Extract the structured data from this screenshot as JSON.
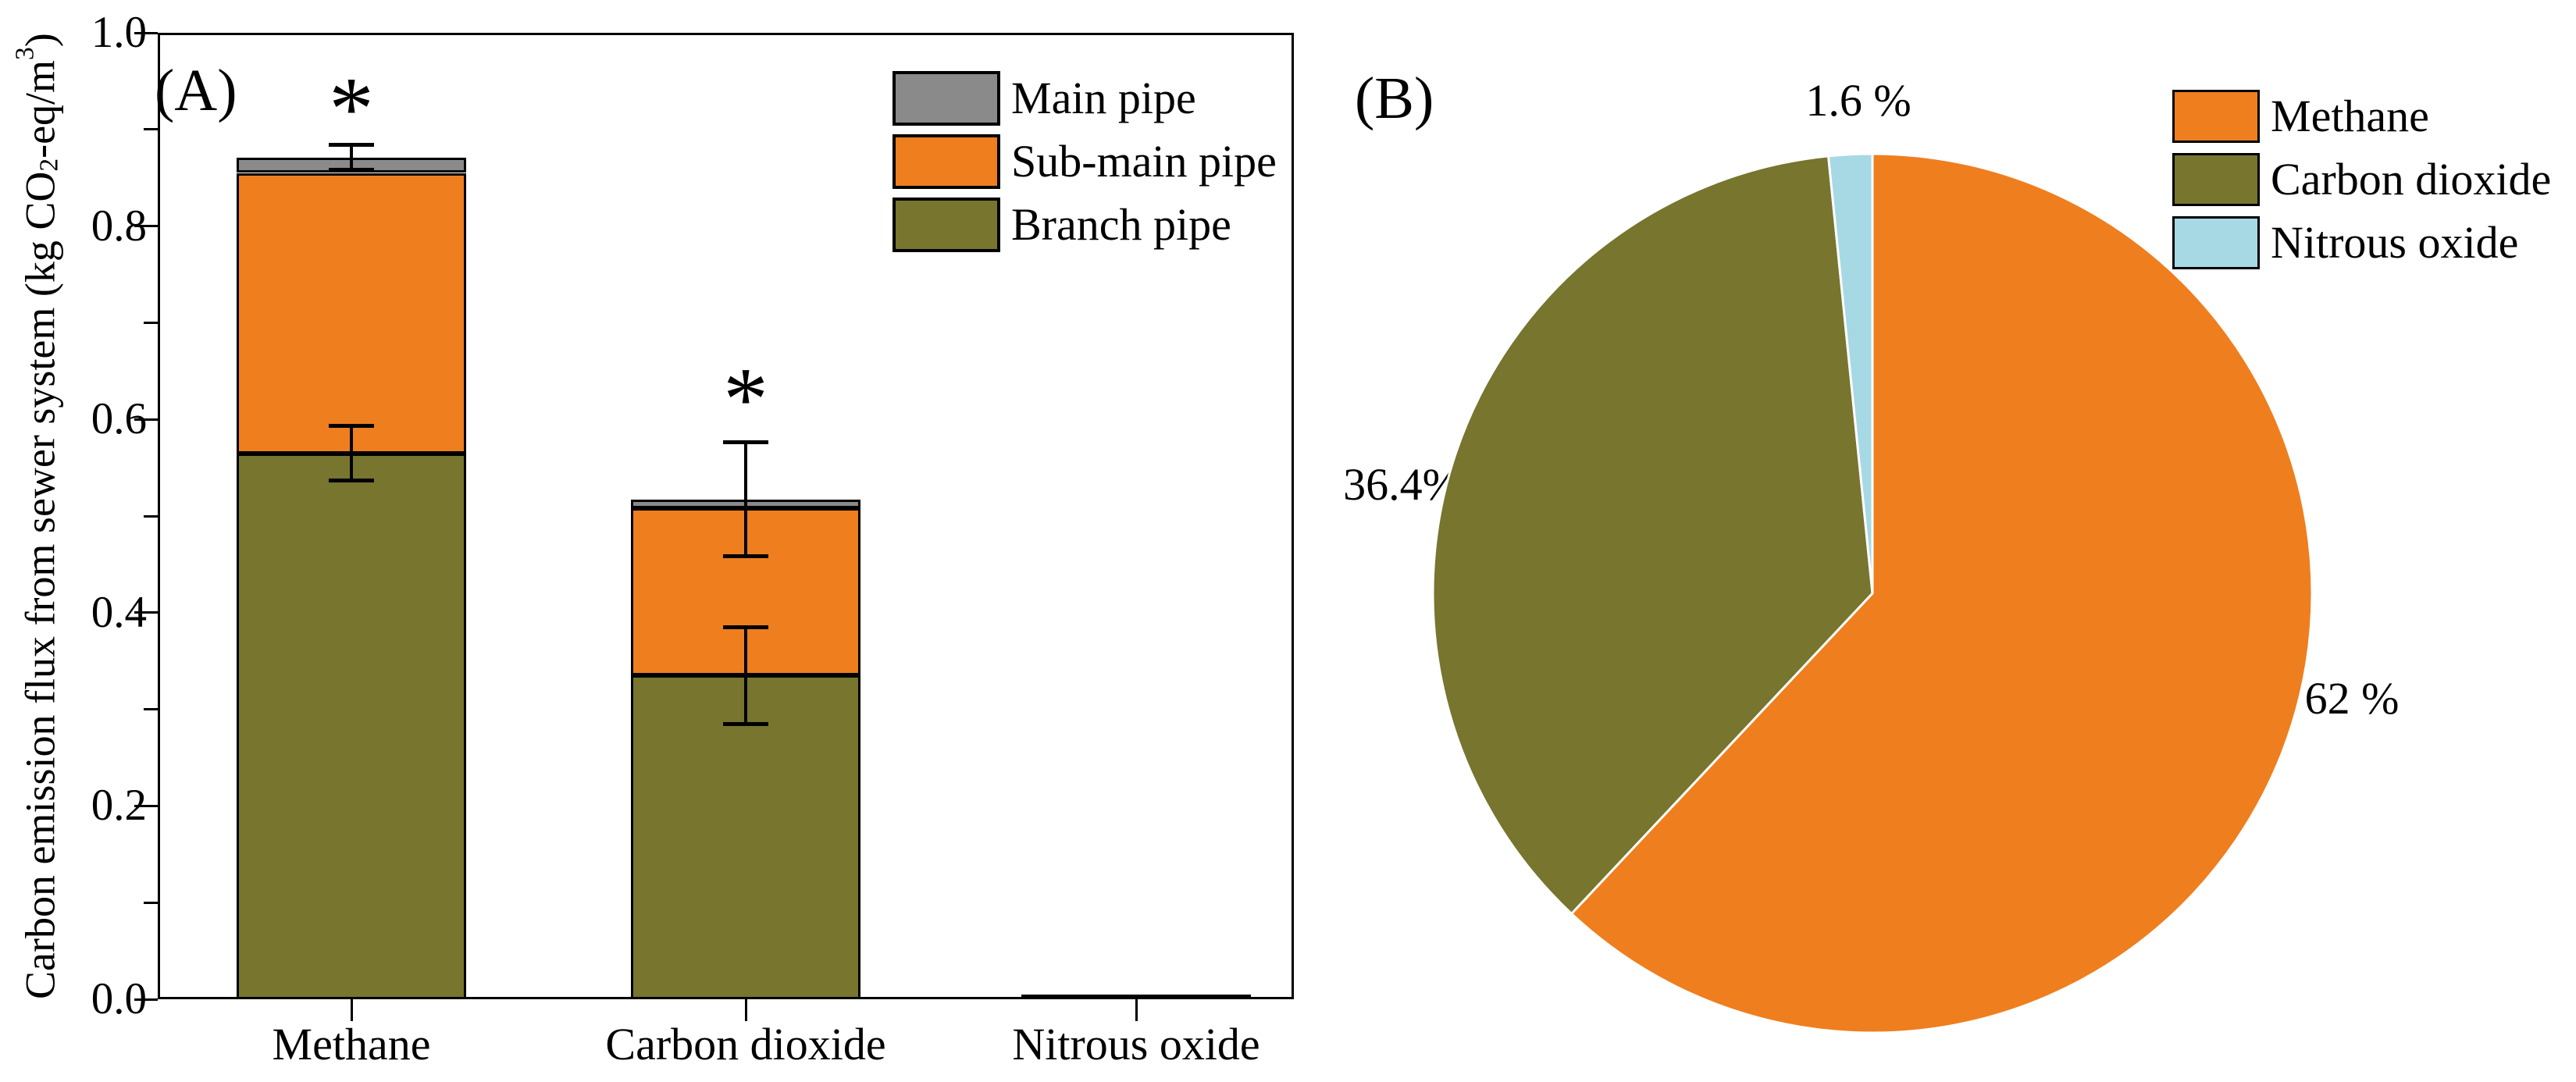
{
  "figure": {
    "panelA": {
      "panel_label": "(A)",
      "ylabel_parts": {
        "pre": "Carbon emission flux from sewer system (kg CO",
        "sub": "2",
        "mid": "-eq/m",
        "sup": "3",
        "post": ")"
      }
    },
    "panelB": {
      "panel_label": "(B)"
    }
  },
  "chart_data": [
    {
      "type": "bar",
      "stacked": true,
      "title": "",
      "xlabel": "",
      "ylabel": "Carbon emission flux from sewer system (kg CO2-eq/m3)",
      "ylim": [
        0.0,
        1.0
      ],
      "yticks": [
        "0.0",
        "0.2",
        "0.4",
        "0.6",
        "0.8",
        "1.0"
      ],
      "yticks_minor": [
        0.1,
        0.3,
        0.5,
        0.7,
        0.9
      ],
      "grid": false,
      "legend_position": "upper right inside",
      "categories": [
        "Methane",
        "Carbon dioxide",
        "Nitrous oxide"
      ],
      "series": [
        {
          "name": "Branch pipe",
          "color": "#77752E",
          "values": [
            0.565,
            0.335,
            0.005
          ]
        },
        {
          "name": "Sub-main pipe",
          "color": "#EF7E1E",
          "values": [
            0.29,
            0.173,
            0.0
          ]
        },
        {
          "name": "Main pipe",
          "color": "#8A8A8A",
          "values": [
            0.016,
            0.009,
            0.0
          ]
        }
      ],
      "totals": [
        0.871,
        0.517,
        0.005
      ],
      "error_bars": [
        {
          "category_index": 0,
          "at": "branch-pipe-top",
          "value": 0.565,
          "error": 0.028
        },
        {
          "category_index": 0,
          "at": "total-top",
          "value": 0.871,
          "error": 0.013
        },
        {
          "category_index": 1,
          "at": "branch-pipe-top",
          "value": 0.335,
          "error": 0.05
        },
        {
          "category_index": 1,
          "at": "total-top",
          "value": 0.517,
          "error": 0.059
        }
      ],
      "significance_markers": [
        {
          "category_index": 0,
          "label": "*",
          "y": 0.915
        },
        {
          "category_index": 1,
          "label": "*",
          "y": 0.615
        }
      ]
    },
    {
      "type": "pie",
      "title": "",
      "labels": [
        "Methane",
        "Carbon dioxide",
        "Nitrous oxide"
      ],
      "values": [
        62,
        36.4,
        1.6
      ],
      "colors": [
        "#EF7E1E",
        "#77752E",
        "#A6D9E4"
      ],
      "slice_labels": [
        "62 %",
        "36.4%",
        "1.6 %"
      ],
      "start_angle_deg": 0,
      "direction": "clockwise",
      "legend_position": "upper right"
    }
  ]
}
